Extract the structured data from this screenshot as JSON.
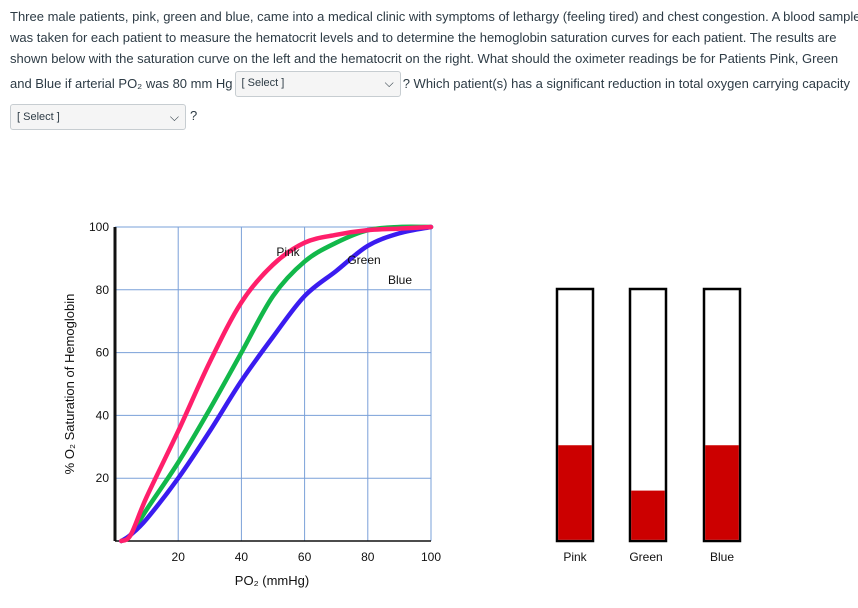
{
  "question": {
    "line1": "Three male patients, pink, green and blue, came into a medical clinic with symptoms of lethargy (feeling tired) and chest congestion.  A blood sample",
    "line2": "was taken for each patient to measure the hematocrit levels and to determine the hemoglobin saturation curves for each patient. The results are",
    "line3": "shown below with the saturation curve on the left and the hematocrit on the right.  What should the oximeter readings be for Patients Pink, Green",
    "line4_before": "and Blue if arterial PO₂ was 80 mm Hg",
    "line4_after": "? Which patient(s) has a significant reduction in total oxygen carrying capacity",
    "after_select2": "?"
  },
  "selects": {
    "select1_value": "[ Select ]",
    "select2_value": "[ Select ]"
  },
  "chart_data": [
    {
      "type": "line",
      "xlabel": "PO₂ (mmHg)",
      "ylabel": "% O₂ Saturation of Hemoglobin",
      "xlim": [
        0,
        100
      ],
      "ylim": [
        0,
        100
      ],
      "xticks": [
        20,
        40,
        60,
        80,
        100
      ],
      "yticks": [
        20,
        40,
        60,
        80,
        100
      ],
      "grid": true,
      "series": [
        {
          "name": "Pink",
          "color": "#ff1f6b",
          "x": [
            2,
            5,
            10,
            20,
            30,
            40,
            50,
            60,
            70,
            80,
            90,
            100
          ],
          "y": [
            0,
            2,
            14,
            35,
            57,
            76,
            88,
            95,
            97.5,
            99,
            99.5,
            100
          ]
        },
        {
          "name": "Green",
          "color": "#12b84a",
          "x": [
            2,
            5,
            10,
            20,
            30,
            40,
            50,
            60,
            70,
            80,
            90,
            100
          ],
          "y": [
            0,
            2,
            10,
            25,
            42,
            60,
            78,
            89,
            95,
            99,
            100,
            100
          ]
        },
        {
          "name": "Blue",
          "color": "#3a1cf0",
          "x": [
            2,
            5,
            10,
            20,
            30,
            40,
            50,
            60,
            70,
            80,
            90,
            100
          ],
          "y": [
            0,
            2,
            7,
            20,
            35,
            51,
            65,
            78,
            86,
            94,
            98,
            100
          ]
        }
      ]
    },
    {
      "type": "bar",
      "categories": [
        "Pink",
        "Green",
        "Blue"
      ],
      "values": [
        38,
        20,
        38
      ],
      "ylim": [
        0,
        100
      ],
      "color": "#cc0000"
    }
  ]
}
